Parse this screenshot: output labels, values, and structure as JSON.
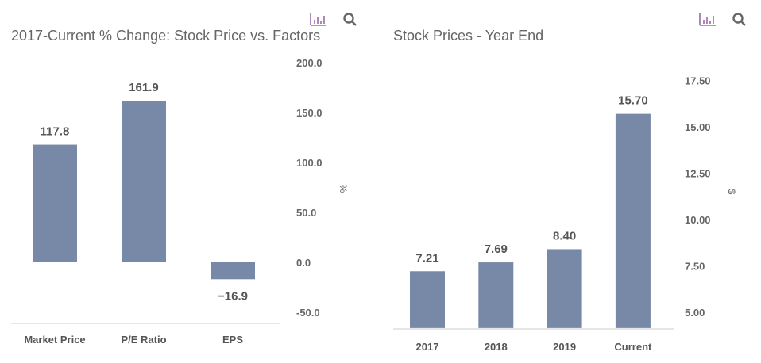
{
  "toolbar": {
    "icons": [
      "bar-chart-icon",
      "search-icon"
    ],
    "accent": "#9b6ba8"
  },
  "chart_data": [
    {
      "type": "bar",
      "title": "2017-Current % Change: Stock Price vs. Factors",
      "categories": [
        "Market Price",
        "P/E Ratio",
        "EPS"
      ],
      "values": [
        117.8,
        161.9,
        -16.9
      ],
      "data_labels": [
        "117.8",
        "161.9",
        "−16.9"
      ],
      "ylabel": "%",
      "yticks": [
        "200.0",
        "150.0",
        "100.0",
        "50.0",
        "0.0",
        "-50.0"
      ],
      "ylim": [
        -60,
        200
      ],
      "yaxis_position": "right",
      "grid": false,
      "color": "#7789a6"
    },
    {
      "type": "bar",
      "title": "Stock Prices - Year End",
      "categories": [
        "2017",
        "2018",
        "2019",
        "Current"
      ],
      "values": [
        7.21,
        7.69,
        8.4,
        15.7
      ],
      "data_labels": [
        "7.21",
        "7.69",
        "8.40",
        "15.70"
      ],
      "ylabel": "$",
      "yticks": [
        "17.50",
        "15.00",
        "12.50",
        "10.00",
        "7.50",
        "5.00"
      ],
      "ylim": [
        4.15,
        17.5
      ],
      "yaxis_position": "right",
      "grid": false,
      "color": "#7789a6"
    }
  ]
}
